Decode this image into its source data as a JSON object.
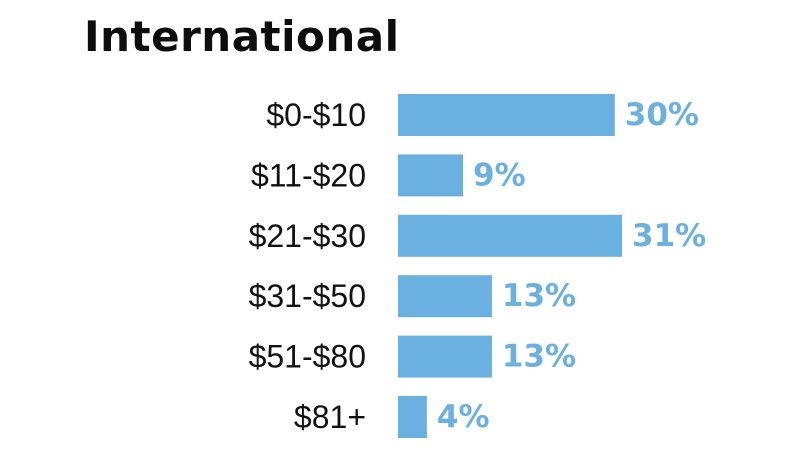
{
  "colors": {
    "bar": "#6ab0e0",
    "value_label": "#6ab0e0",
    "title": "#0d0d0d",
    "category_label": "#111111"
  },
  "chart_data": {
    "type": "bar",
    "orientation": "horizontal",
    "title": "International",
    "categories": [
      "$0-$10",
      "$11-$20",
      "$21-$30",
      "$31-$50",
      "$51-$80",
      "$81+"
    ],
    "values": [
      30,
      9,
      31,
      13,
      13,
      4
    ],
    "data_labels": [
      "30%",
      "9%",
      "31%",
      "13%",
      "13%",
      "4%"
    ],
    "unit": "%",
    "xlim": [
      0,
      31
    ],
    "grid": false,
    "axes_visible": false,
    "legend": "none"
  }
}
